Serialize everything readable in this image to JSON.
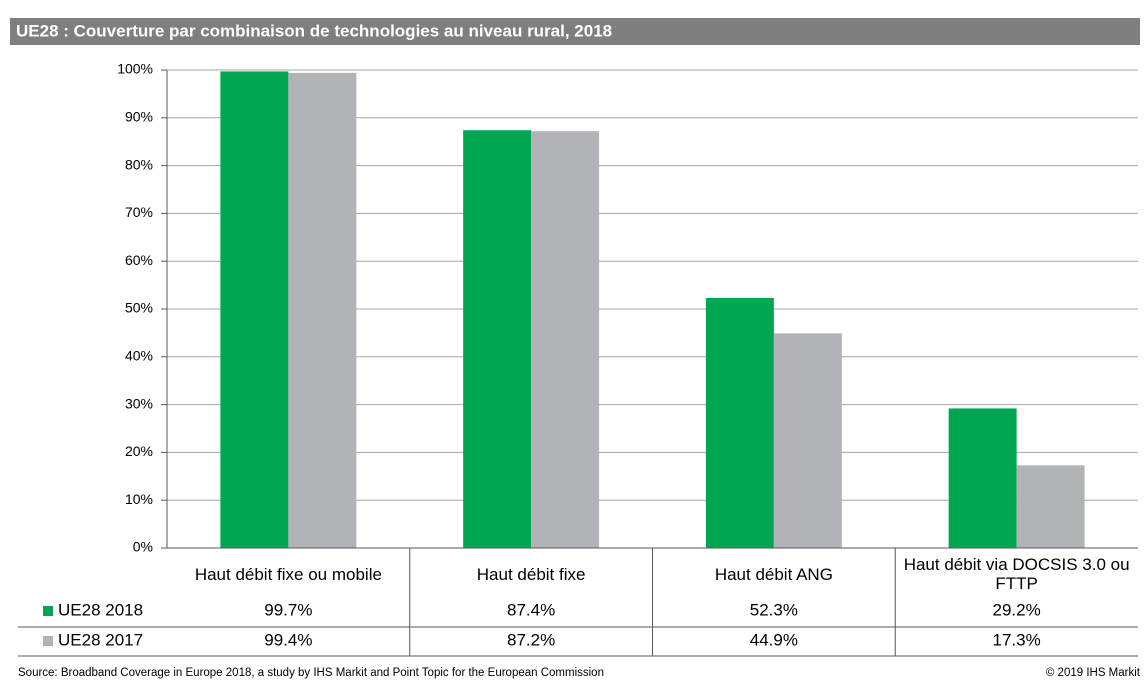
{
  "chart_data": {
    "type": "bar",
    "title": "UE28 : Couverture par combinaison de technologies au niveau rural, 2018",
    "categories": [
      "Haut débit fixe ou mobile",
      "Haut débit fixe",
      "Haut débit ANG",
      "Haut débit via DOCSIS 3.0 ou FTTP"
    ],
    "series": [
      {
        "name": "UE28 2018",
        "color": "#00a651",
        "values": [
          99.7,
          87.4,
          52.3,
          29.2
        ],
        "value_labels": [
          "99.7%",
          "87.4%",
          "52.3%",
          "29.2%"
        ]
      },
      {
        "name": "UE28 2017",
        "color": "#b2b3b6",
        "values": [
          99.4,
          87.2,
          44.9,
          17.3
        ],
        "value_labels": [
          "99.4%",
          "87.2%",
          "44.9%",
          "17.3%"
        ]
      }
    ],
    "ylim": [
      0,
      100
    ],
    "yticks": [
      {
        "value": 0,
        "label": "0%"
      },
      {
        "value": 10,
        "label": "10%"
      },
      {
        "value": 20,
        "label": "20%"
      },
      {
        "value": 30,
        "label": "30%"
      },
      {
        "value": 40,
        "label": "40%"
      },
      {
        "value": 50,
        "label": "50%"
      },
      {
        "value": 60,
        "label": "60%"
      },
      {
        "value": 70,
        "label": "70%"
      },
      {
        "value": 80,
        "label": "80%"
      },
      {
        "value": 90,
        "label": "90%"
      },
      {
        "value": 100,
        "label": "100%"
      }
    ],
    "grid": true,
    "source": "Source: Broadband Coverage in Europe 2018, a study by IHS Markit and Point Topic for the European Commission",
    "copyright": "© 2019 IHS Markit"
  }
}
